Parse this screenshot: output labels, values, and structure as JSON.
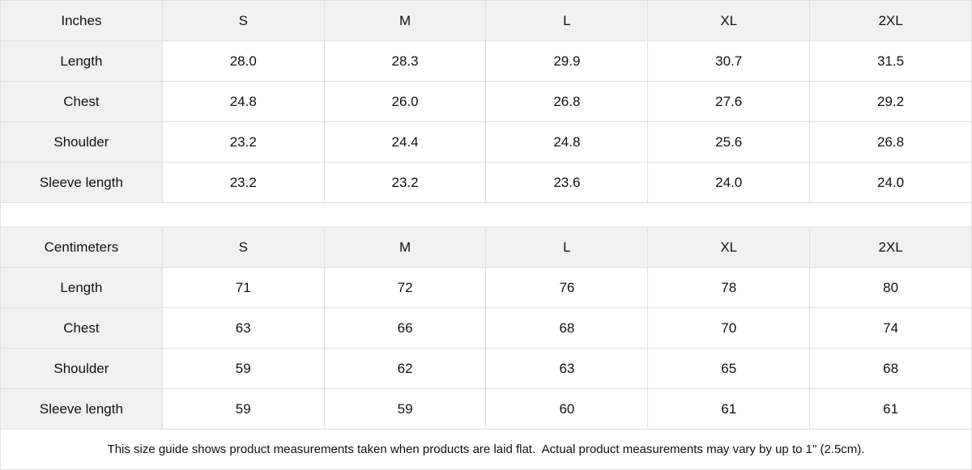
{
  "tables": [
    {
      "unit_label": "Inches",
      "columns": [
        "S",
        "M",
        "L",
        "XL",
        "2XL"
      ],
      "rows": [
        {
          "label": "Length",
          "values": [
            "28.0",
            "28.3",
            "29.9",
            "30.7",
            "31.5"
          ]
        },
        {
          "label": "Chest",
          "values": [
            "24.8",
            "26.0",
            "26.8",
            "27.6",
            "29.2"
          ]
        },
        {
          "label": "Shoulder",
          "values": [
            "23.2",
            "24.4",
            "24.8",
            "25.6",
            "26.8"
          ]
        },
        {
          "label": "Sleeve length",
          "values": [
            "23.2",
            "23.2",
            "23.6",
            "24.0",
            "24.0"
          ]
        }
      ]
    },
    {
      "unit_label": "Centimeters",
      "columns": [
        "S",
        "M",
        "L",
        "XL",
        "2XL"
      ],
      "rows": [
        {
          "label": "Length",
          "values": [
            "71",
            "72",
            "76",
            "78",
            "80"
          ]
        },
        {
          "label": "Chest",
          "values": [
            "63",
            "66",
            "68",
            "70",
            "74"
          ]
        },
        {
          "label": "Shoulder",
          "values": [
            "59",
            "62",
            "63",
            "65",
            "68"
          ]
        },
        {
          "label": "Sleeve length",
          "values": [
            "59",
            "59",
            "60",
            "61",
            "61"
          ]
        }
      ]
    }
  ],
  "footer": {
    "note": "This size guide shows product measurements taken when products are laid flat.  Actual product measurements may vary by up to 1\" (2.5cm)."
  },
  "colors": {
    "header_bg": "#f1f1f1",
    "border": "#e0e0e0",
    "text": "#111111",
    "background": "#ffffff"
  }
}
